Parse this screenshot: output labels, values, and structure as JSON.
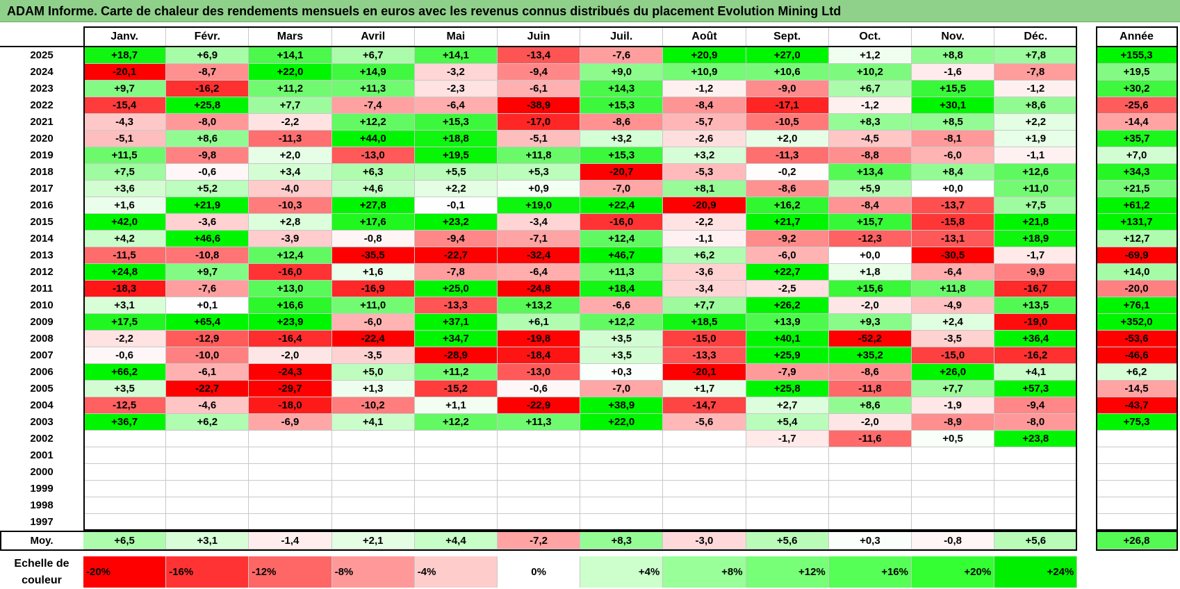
{
  "title": "ADAM Informe. Carte de chaleur des rendements mensuels en euros avec les revenus connus distribués du placement Evolution Mining Ltd",
  "chart_data": {
    "type": "heatmap",
    "columns": [
      "Janv.",
      "Févr.",
      "Mars",
      "Avril",
      "Mai",
      "Juin",
      "Juil.",
      "Août",
      "Sept.",
      "Oct.",
      "Nov.",
      "Déc."
    ],
    "year_column_label": "Année",
    "rows": [
      {
        "year": "2025",
        "values": [
          "+18,7",
          "+6,9",
          "+14,1",
          "+6,7",
          "+14,1",
          "-13,4",
          "-7,6",
          "+20,9",
          "+27,0",
          "+1,2",
          "+8,8",
          "+7,8"
        ],
        "annual": "+155,3"
      },
      {
        "year": "2024",
        "values": [
          "-20,1",
          "-8,7",
          "+22,0",
          "+14,9",
          "-3,2",
          "-9,4",
          "+9,0",
          "+10,9",
          "+10,6",
          "+10,2",
          "-1,6",
          "-7,8"
        ],
        "annual": "+19,5"
      },
      {
        "year": "2023",
        "values": [
          "+9,7",
          "-16,2",
          "+11,2",
          "+11,3",
          "-2,3",
          "-6,1",
          "+14,3",
          "-1,2",
          "-9,0",
          "+6,7",
          "+15,5",
          "-1,2"
        ],
        "annual": "+30,2"
      },
      {
        "year": "2022",
        "values": [
          "-15,4",
          "+25,8",
          "+7,7",
          "-7,4",
          "-6,4",
          "-38,9",
          "+15,3",
          "-8,4",
          "-17,1",
          "-1,2",
          "+30,1",
          "+8,6"
        ],
        "annual": "-25,6"
      },
      {
        "year": "2021",
        "values": [
          "-4,3",
          "-8,0",
          "-2,2",
          "+12,2",
          "+15,3",
          "-17,0",
          "-8,6",
          "-5,7",
          "-10,5",
          "+8,3",
          "+8,5",
          "+2,2"
        ],
        "annual": "-14,4"
      },
      {
        "year": "2020",
        "values": [
          "-5,1",
          "+8,6",
          "-11,3",
          "+44,0",
          "+18,8",
          "-5,1",
          "+3,2",
          "-2,6",
          "+2,0",
          "-4,5",
          "-8,1",
          "+1,9"
        ],
        "annual": "+35,7"
      },
      {
        "year": "2019",
        "values": [
          "+11,5",
          "-9,8",
          "+2,0",
          "-13,0",
          "+19,5",
          "+11,8",
          "+15,3",
          "+3,2",
          "-11,3",
          "-8,8",
          "-6,0",
          "-1,1"
        ],
        "annual": "+7,0"
      },
      {
        "year": "2018",
        "values": [
          "+7,5",
          "-0,6",
          "+3,4",
          "+6,3",
          "+5,5",
          "+5,3",
          "-20,7",
          "-5,3",
          "-0,2",
          "+13,4",
          "+8,4",
          "+12,6"
        ],
        "annual": "+34,3"
      },
      {
        "year": "2017",
        "values": [
          "+3,6",
          "+5,2",
          "-4,0",
          "+4,6",
          "+2,2",
          "+0,9",
          "-7,0",
          "+8,1",
          "-8,6",
          "+5,9",
          "+0,0",
          "+11,0"
        ],
        "annual": "+21,5"
      },
      {
        "year": "2016",
        "values": [
          "+1,6",
          "+21,9",
          "-10,3",
          "+27,8",
          "-0,1",
          "+19,0",
          "+22,4",
          "-20,9",
          "+16,2",
          "-8,4",
          "-13,7",
          "+7,5"
        ],
        "annual": "+61,2"
      },
      {
        "year": "2015",
        "values": [
          "+42,0",
          "-3,6",
          "+2,8",
          "+17,6",
          "+23,2",
          "-3,4",
          "-16,0",
          "-2,2",
          "+21,7",
          "+15,7",
          "-15,8",
          "+21,8"
        ],
        "annual": "+131,7"
      },
      {
        "year": "2014",
        "values": [
          "+4,2",
          "+46,6",
          "-3,9",
          "-0,8",
          "-9,4",
          "-7,1",
          "+12,4",
          "-1,1",
          "-9,2",
          "-12,3",
          "-13,1",
          "+18,9"
        ],
        "annual": "+12,7"
      },
      {
        "year": "2013",
        "values": [
          "-11,5",
          "-10,8",
          "+12,4",
          "-35,5",
          "-22,7",
          "-32,4",
          "+46,7",
          "+6,2",
          "-6,0",
          "+0,0",
          "-30,5",
          "-1,7"
        ],
        "annual": "-69,9"
      },
      {
        "year": "2012",
        "values": [
          "+24,8",
          "+9,7",
          "-16,0",
          "+1,6",
          "-7,8",
          "-6,4",
          "+11,3",
          "-3,6",
          "+22,7",
          "+1,8",
          "-6,4",
          "-9,9"
        ],
        "annual": "+14,0"
      },
      {
        "year": "2011",
        "values": [
          "-18,3",
          "-7,6",
          "+13,0",
          "-16,9",
          "+25,0",
          "-24,8",
          "+18,4",
          "-3,4",
          "-2,5",
          "+15,6",
          "+11,8",
          "-16,7"
        ],
        "annual": "-20,0"
      },
      {
        "year": "2010",
        "values": [
          "+3,1",
          "+0,1",
          "+16,6",
          "+11,0",
          "-13,3",
          "+13,2",
          "-6,6",
          "+7,7",
          "+26,2",
          "-2,0",
          "-4,9",
          "+13,5"
        ],
        "annual": "+76,1"
      },
      {
        "year": "2009",
        "values": [
          "+17,5",
          "+65,4",
          "+23,9",
          "-6,0",
          "+37,1",
          "+6,1",
          "+12,2",
          "+18,5",
          "+13,9",
          "+9,3",
          "+2,4",
          "-19,0"
        ],
        "annual": "+352,0"
      },
      {
        "year": "2008",
        "values": [
          "-2,2",
          "-12,9",
          "-16,4",
          "-22,4",
          "+34,7",
          "-19,8",
          "+3,5",
          "-15,0",
          "+40,1",
          "-52,2",
          "-3,5",
          "+36,4"
        ],
        "annual": "-53,6"
      },
      {
        "year": "2007",
        "values": [
          "-0,6",
          "-10,0",
          "-2,0",
          "-3,5",
          "-28,9",
          "-18,4",
          "+3,5",
          "-13,3",
          "+25,9",
          "+35,2",
          "-15,0",
          "-16,2"
        ],
        "annual": "-46,6"
      },
      {
        "year": "2006",
        "values": [
          "+66,2",
          "-6,1",
          "-24,3",
          "+5,0",
          "+11,2",
          "-13,0",
          "+0,3",
          "-20,1",
          "-7,9",
          "-8,6",
          "+26,0",
          "+4,1"
        ],
        "annual": "+6,2"
      },
      {
        "year": "2005",
        "values": [
          "+3,5",
          "-22,7",
          "-29,7",
          "+1,3",
          "-15,2",
          "-0,6",
          "-7,0",
          "+1,7",
          "+25,8",
          "-11,8",
          "+7,7",
          "+57,3"
        ],
        "annual": "-14,5"
      },
      {
        "year": "2004",
        "values": [
          "-12,5",
          "-4,6",
          "-18,0",
          "-10,2",
          "+1,1",
          "-22,9",
          "+38,9",
          "-14,7",
          "+2,7",
          "+8,6",
          "-1,9",
          "-9,4"
        ],
        "annual": "-43,7"
      },
      {
        "year": "2003",
        "values": [
          "+36,7",
          "+6,2",
          "-6,9",
          "+4,1",
          "+12,2",
          "+11,3",
          "+22,0",
          "-5,6",
          "+5,4",
          "-2,0",
          "-8,9",
          "-8,0"
        ],
        "annual": "+75,3"
      },
      {
        "year": "2002",
        "values": [
          "",
          "",
          "",
          "",
          "",
          "",
          "",
          "",
          "-1,7",
          "-11,6",
          "+0,5",
          "+23,8"
        ],
        "annual": ""
      },
      {
        "year": "2001",
        "values": [
          "",
          "",
          "",
          "",
          "",
          "",
          "",
          "",
          "",
          "",
          "",
          ""
        ],
        "annual": ""
      },
      {
        "year": "2000",
        "values": [
          "",
          "",
          "",
          "",
          "",
          "",
          "",
          "",
          "",
          "",
          "",
          ""
        ],
        "annual": ""
      },
      {
        "year": "1999",
        "values": [
          "",
          "",
          "",
          "",
          "",
          "",
          "",
          "",
          "",
          "",
          "",
          ""
        ],
        "annual": ""
      },
      {
        "year": "1998",
        "values": [
          "",
          "",
          "",
          "",
          "",
          "",
          "",
          "",
          "",
          "",
          "",
          ""
        ],
        "annual": ""
      },
      {
        "year": "1997",
        "values": [
          "",
          "",
          "",
          "",
          "",
          "",
          "",
          "",
          "",
          "",
          "",
          ""
        ],
        "annual": ""
      }
    ],
    "average": {
      "label": "Moy.",
      "values": [
        "+6,5",
        "+3,1",
        "-1,4",
        "+2,1",
        "+4,4",
        "-7,2",
        "+8,3",
        "-3,0",
        "+5,6",
        "+0,3",
        "-0,8",
        "+5,6"
      ],
      "annual": "+26,8"
    },
    "color_scale": {
      "label_line1": "Echelle de",
      "label_line2": "couleur",
      "steps": [
        {
          "label": "-20%",
          "value": -20,
          "color": "#ff0000"
        },
        {
          "label": "-16%",
          "value": -16,
          "color": "#ff3333"
        },
        {
          "label": "-12%",
          "value": -12,
          "color": "#ff6666"
        },
        {
          "label": "-8%",
          "value": -8,
          "color": "#ff9999"
        },
        {
          "label": "-4%",
          "value": -4,
          "color": "#ffcccc"
        },
        {
          "label": "0%",
          "value": 0,
          "color": "#ffffff"
        },
        {
          "label": "+4%",
          "value": 4,
          "color": "#ccffcc"
        },
        {
          "label": "+8%",
          "value": 8,
          "color": "#99ff99"
        },
        {
          "label": "+12%",
          "value": 12,
          "color": "#77ff77"
        },
        {
          "label": "+16%",
          "value": 16,
          "color": "#55ff55"
        },
        {
          "label": "+20%",
          "value": 20,
          "color": "#33ff33"
        },
        {
          "label": "+24%",
          "value": 24,
          "color": "#00ee00"
        }
      ]
    }
  }
}
